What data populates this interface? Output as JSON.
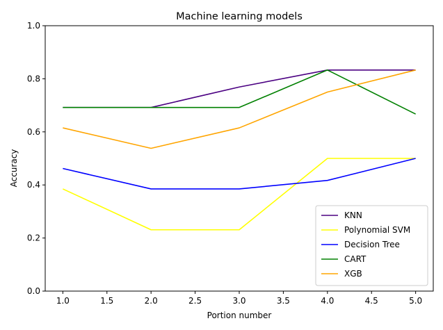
{
  "chart_data": {
    "type": "line",
    "title": "Machine learning models",
    "xlabel": "Portion number",
    "ylabel": "Accuracy",
    "x": [
      1.0,
      2.0,
      3.0,
      4.0,
      5.0
    ],
    "xlim": [
      0.8,
      5.2
    ],
    "ylim": [
      0.0,
      1.0
    ],
    "xticks": [
      "1.0",
      "1.5",
      "2.0",
      "2.5",
      "3.0",
      "3.5",
      "4.0",
      "4.5",
      "5.0"
    ],
    "yticks": [
      "0.0",
      "0.2",
      "0.4",
      "0.6",
      "0.8",
      "1.0"
    ],
    "grid": false,
    "legend_position": "lower-right",
    "series": [
      {
        "name": "KNN",
        "color": "#4b0082",
        "values": [
          0.692,
          0.692,
          0.769,
          0.833,
          0.833
        ]
      },
      {
        "name": "Polynomial SVM",
        "color": "#ffff00",
        "values": [
          0.385,
          0.231,
          0.231,
          0.5,
          0.5
        ]
      },
      {
        "name": "Decision Tree",
        "color": "#0000ff",
        "values": [
          0.462,
          0.385,
          0.385,
          0.417,
          0.5
        ]
      },
      {
        "name": "CART",
        "color": "#008000",
        "values": [
          0.692,
          0.692,
          0.692,
          0.833,
          0.667
        ]
      },
      {
        "name": "XGB",
        "color": "#ffa500",
        "values": [
          0.615,
          0.538,
          0.615,
          0.75,
          0.833
        ]
      }
    ]
  }
}
